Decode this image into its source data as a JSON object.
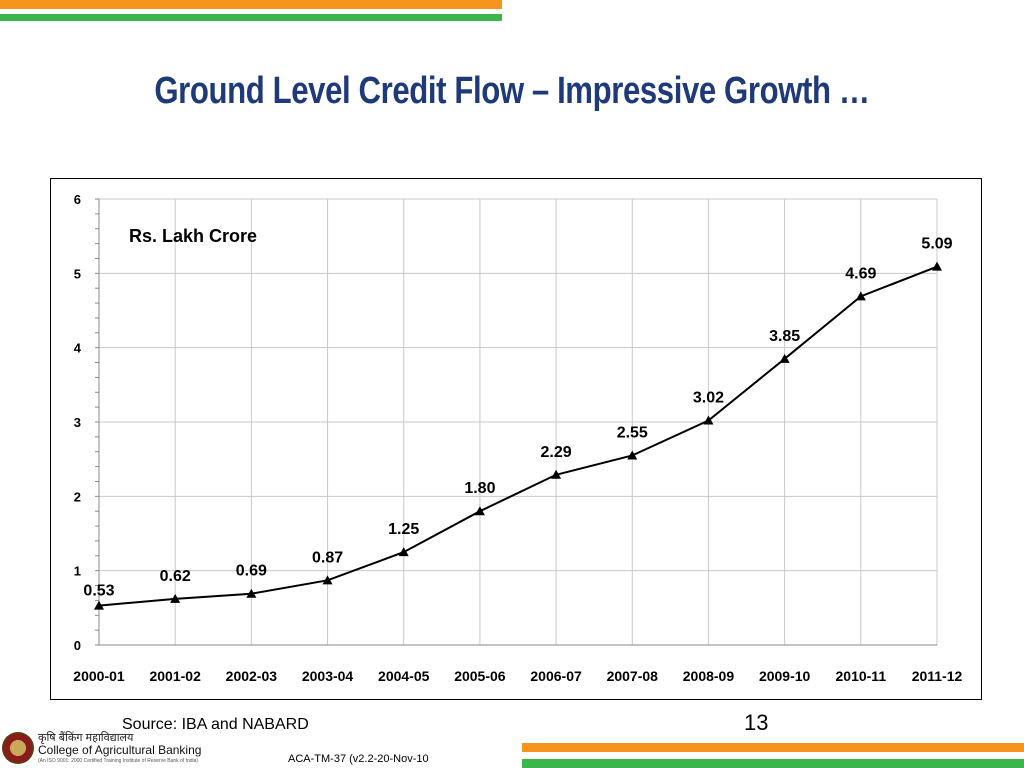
{
  "slide": {
    "title": "Ground Level Credit Flow – Impressive Growth …",
    "source": "Source: IBA and NABARD",
    "page_number": "13",
    "footer_code": "ACA-TM-37 (v2.2-20-Nov-10",
    "logo_hindi": "कृषि बैंकिंग महाविद्यालय",
    "logo_name": "College of Agricultural Banking",
    "logo_sub": "(An ISO 9001: 2000 Certified Training Institute of Reserve Bank of India)",
    "colors": {
      "title": "#1f3a78",
      "orange_bar": "#f7941d",
      "green_bar": "#3cb54a",
      "line": "#000000"
    }
  },
  "chart_data": {
    "type": "line",
    "annotation": "Rs.  Lakh Crore",
    "categories": [
      "2000-01",
      "2001-02",
      "2002-03",
      "2003-04",
      "2004-05",
      "2005-06",
      "2006-07",
      "2007-08",
      "2008-09",
      "2009-10",
      "2010-11",
      "2011-12"
    ],
    "values": [
      0.53,
      0.62,
      0.69,
      0.87,
      1.25,
      1.8,
      2.29,
      2.55,
      3.02,
      3.85,
      4.69,
      5.09
    ],
    "data_labels": [
      "0.53",
      "0.62",
      "0.69",
      "0.87",
      "1.25",
      "1.80",
      "2.29",
      "2.55",
      "3.02",
      "3.85",
      "4.69",
      "5.09"
    ],
    "y_ticks": [
      "0",
      "1",
      "2",
      "3",
      "4",
      "5",
      "6"
    ],
    "ylim": [
      0,
      6
    ],
    "grid": true,
    "legend": "none",
    "marker": "triangle"
  }
}
